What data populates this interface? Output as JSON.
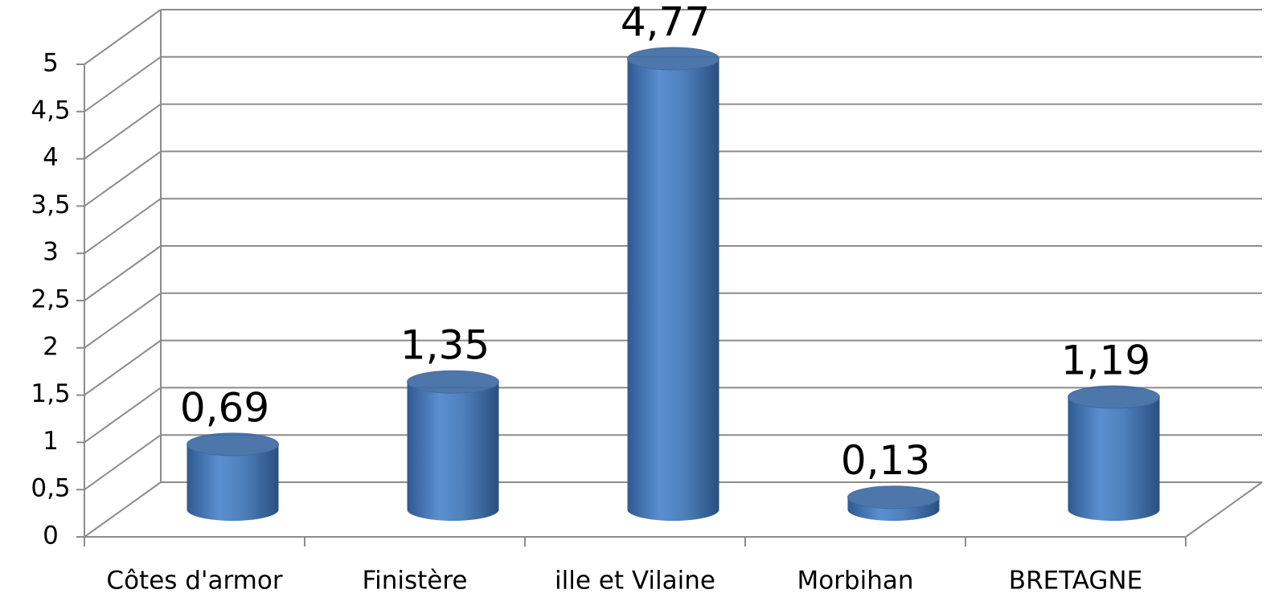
{
  "chart_data": {
    "type": "bar",
    "categories": [
      "Côtes d'armor",
      "Finistère",
      "ille et Vilaine",
      "Morbihan",
      "BRETAGNE"
    ],
    "values": [
      0.69,
      1.35,
      4.77,
      0.13,
      1.19
    ],
    "value_labels": [
      "0,69",
      "1,35",
      "4,77",
      "0,13",
      "1,19"
    ],
    "color": "#4f81bd",
    "ylim": [
      0,
      5
    ],
    "yticks": [
      0,
      {
        "value": 0.5,
        "label": "0,5"
      },
      1,
      {
        "value": 1.5,
        "label": "1,5"
      },
      2,
      {
        "value": 2.5,
        "label": "2,5"
      },
      3,
      {
        "value": 3.5,
        "label": "3,5"
      },
      4,
      {
        "value": 4.5,
        "label": "4,5"
      },
      5
    ],
    "grid": true
  }
}
